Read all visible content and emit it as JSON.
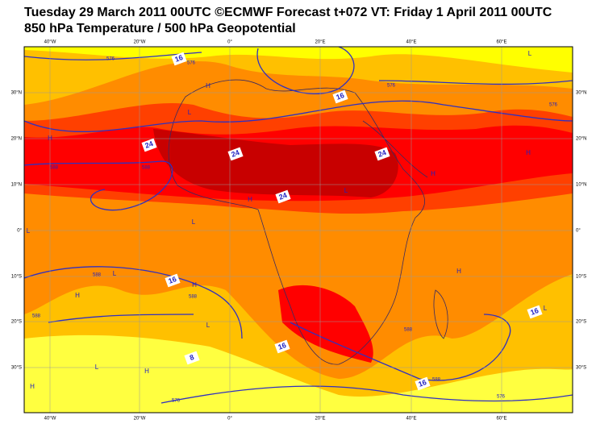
{
  "header": {
    "line1": "Tuesday 29 March 2011 00UTC ©ECMWF Forecast t+072 VT: Friday 1 April 2011 00UTC",
    "line2": "850 hPa Temperature / 500 hPa Geopotential"
  },
  "axes": {
    "longitudes": [
      "40°W",
      "20°W",
      "0°",
      "20°E",
      "40°E",
      "60°E"
    ],
    "latitudes": [
      "30°N",
      "20°N",
      "10°N",
      "0°",
      "10°S",
      "20°S",
      "30°S"
    ]
  },
  "temperature_labels": [
    "16",
    "16",
    "24",
    "24",
    "24",
    "24",
    "16",
    "16",
    "16",
    "8",
    "16"
  ],
  "height_labels": [
    "576",
    "576",
    "576",
    "576",
    "588",
    "588",
    "588",
    "588",
    "588",
    "588",
    "588",
    "576",
    "576"
  ],
  "pressure_centres": [
    "H",
    "H",
    "H",
    "H",
    "H",
    "H",
    "H",
    "H",
    "H",
    "H",
    "L",
    "L",
    "L",
    "L",
    "L",
    "L",
    "L",
    "L",
    "L"
  ]
}
